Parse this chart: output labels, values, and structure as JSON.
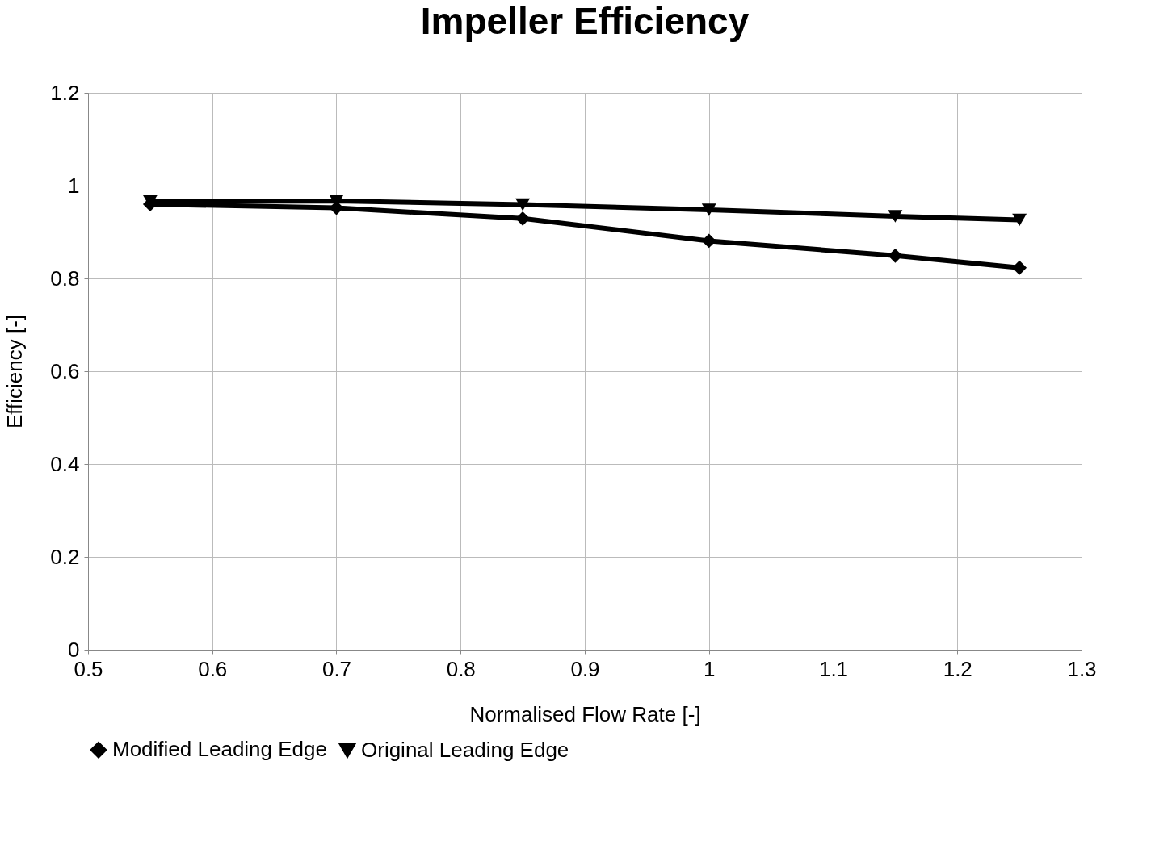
{
  "chart_data": {
    "type": "line",
    "title": "Impeller Efficiency",
    "xlabel": "Normalised Flow Rate [-]",
    "ylabel": "Efficiency [-]",
    "x": [
      0.55,
      0.7,
      0.85,
      1.0,
      1.15,
      1.25
    ],
    "series": [
      {
        "name": "Modified Leading Edge",
        "color": "#000000",
        "marker": "diamond",
        "values": [
          0.96,
          0.952,
          0.929,
          0.881,
          0.849,
          0.823
        ]
      },
      {
        "name": "Original Leading Edge",
        "color": "#000000",
        "marker": "triangle-down",
        "values": [
          0.966,
          0.967,
          0.959,
          0.948,
          0.934,
          0.926
        ]
      }
    ],
    "xlim": [
      0.5,
      1.3
    ],
    "xticks": [
      0.5,
      0.6,
      0.7,
      0.8,
      0.9,
      1,
      1.1,
      1.2,
      1.3
    ],
    "ylim": [
      0,
      1.2
    ],
    "yticks": [
      0,
      0.2,
      0.4,
      0.6,
      0.8,
      1,
      1.2
    ],
    "grid": true,
    "legend": "bottom",
    "line_style": "solid"
  }
}
